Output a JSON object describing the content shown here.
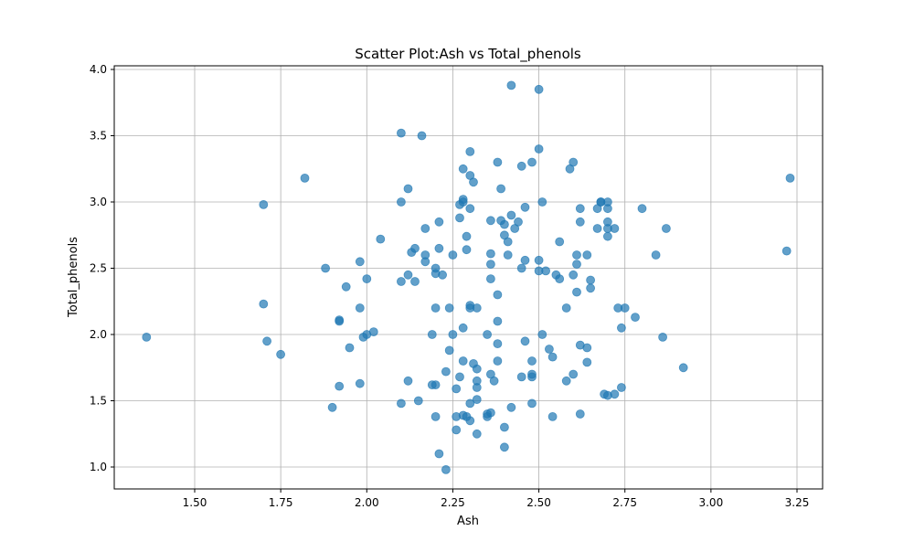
{
  "chart_data": {
    "type": "scatter",
    "title": "Scatter Plot:Ash vs Total_phenols",
    "xlabel": "Ash",
    "ylabel": "Total_phenols",
    "xlim": [
      1.36,
      3.23
    ],
    "ylim": [
      0.98,
      3.88
    ],
    "grid": true,
    "marker_color": "#1f77b4",
    "marker_alpha": 0.7,
    "x_ticks": [
      1.5,
      1.75,
      2.0,
      2.25,
      2.5,
      2.75,
      3.0,
      3.25
    ],
    "x_tick_labels": [
      "1.50",
      "1.75",
      "2.00",
      "2.25",
      "2.50",
      "2.75",
      "3.00",
      "3.25"
    ],
    "y_ticks": [
      1.0,
      1.5,
      2.0,
      2.5,
      3.0,
      3.5,
      4.0
    ],
    "y_tick_labels": [
      "1.0",
      "1.5",
      "2.0",
      "2.5",
      "3.0",
      "3.5",
      "4.0"
    ],
    "points": [
      [
        1.36,
        1.98
      ],
      [
        1.7,
        2.98
      ],
      [
        1.7,
        2.23
      ],
      [
        1.71,
        1.95
      ],
      [
        1.75,
        1.85
      ],
      [
        1.82,
        3.18
      ],
      [
        1.88,
        2.5
      ],
      [
        1.9,
        1.45
      ],
      [
        1.92,
        2.11
      ],
      [
        1.92,
        2.1
      ],
      [
        1.92,
        1.61
      ],
      [
        1.94,
        2.36
      ],
      [
        1.95,
        1.9
      ],
      [
        1.98,
        2.55
      ],
      [
        1.98,
        2.2
      ],
      [
        1.98,
        1.63
      ],
      [
        1.99,
        1.98
      ],
      [
        2.0,
        2.42
      ],
      [
        2.0,
        2.0
      ],
      [
        2.02,
        2.02
      ],
      [
        2.04,
        2.72
      ],
      [
        2.1,
        3.52
      ],
      [
        2.1,
        3.0
      ],
      [
        2.1,
        2.4
      ],
      [
        2.1,
        1.48
      ],
      [
        2.12,
        3.1
      ],
      [
        2.12,
        2.45
      ],
      [
        2.12,
        1.65
      ],
      [
        2.13,
        2.62
      ],
      [
        2.14,
        2.65
      ],
      [
        2.14,
        2.4
      ],
      [
        2.15,
        1.5
      ],
      [
        2.16,
        3.5
      ],
      [
        2.17,
        2.8
      ],
      [
        2.17,
        2.6
      ],
      [
        2.17,
        2.55
      ],
      [
        2.19,
        2.0
      ],
      [
        2.19,
        1.62
      ],
      [
        2.2,
        2.5
      ],
      [
        2.2,
        2.46
      ],
      [
        2.2,
        2.2
      ],
      [
        2.2,
        1.62
      ],
      [
        2.2,
        1.38
      ],
      [
        2.21,
        2.85
      ],
      [
        2.21,
        2.65
      ],
      [
        2.21,
        1.1
      ],
      [
        2.22,
        2.45
      ],
      [
        2.23,
        1.72
      ],
      [
        2.23,
        0.98
      ],
      [
        2.24,
        2.2
      ],
      [
        2.24,
        1.88
      ],
      [
        2.25,
        2.6
      ],
      [
        2.25,
        2.0
      ],
      [
        2.26,
        1.59
      ],
      [
        2.26,
        1.38
      ],
      [
        2.26,
        1.28
      ],
      [
        2.27,
        2.98
      ],
      [
        2.27,
        2.88
      ],
      [
        2.27,
        1.68
      ],
      [
        2.28,
        3.25
      ],
      [
        2.28,
        3.0
      ],
      [
        2.28,
        3.02
      ],
      [
        2.28,
        2.05
      ],
      [
        2.28,
        1.8
      ],
      [
        2.28,
        1.39
      ],
      [
        2.29,
        2.74
      ],
      [
        2.29,
        2.64
      ],
      [
        2.29,
        1.38
      ],
      [
        2.3,
        3.38
      ],
      [
        2.3,
        3.2
      ],
      [
        2.3,
        2.95
      ],
      [
        2.3,
        2.22
      ],
      [
        2.3,
        2.2
      ],
      [
        2.3,
        1.48
      ],
      [
        2.3,
        1.35
      ],
      [
        2.31,
        3.15
      ],
      [
        2.31,
        1.78
      ],
      [
        2.32,
        2.2
      ],
      [
        2.32,
        1.74
      ],
      [
        2.32,
        1.65
      ],
      [
        2.32,
        1.6
      ],
      [
        2.32,
        1.51
      ],
      [
        2.32,
        1.25
      ],
      [
        2.35,
        2.0
      ],
      [
        2.35,
        1.4
      ],
      [
        2.35,
        1.38
      ],
      [
        2.36,
        2.86
      ],
      [
        2.36,
        2.61
      ],
      [
        2.36,
        2.53
      ],
      [
        2.36,
        2.42
      ],
      [
        2.36,
        1.7
      ],
      [
        2.36,
        1.41
      ],
      [
        2.37,
        1.65
      ],
      [
        2.38,
        3.3
      ],
      [
        2.38,
        2.3
      ],
      [
        2.38,
        2.1
      ],
      [
        2.38,
        1.93
      ],
      [
        2.38,
        1.8
      ],
      [
        2.39,
        3.1
      ],
      [
        2.39,
        2.86
      ],
      [
        2.4,
        2.83
      ],
      [
        2.4,
        2.75
      ],
      [
        2.4,
        1.3
      ],
      [
        2.4,
        1.15
      ],
      [
        2.41,
        2.7
      ],
      [
        2.41,
        2.6
      ],
      [
        2.42,
        3.88
      ],
      [
        2.42,
        2.9
      ],
      [
        2.42,
        1.45
      ],
      [
        2.43,
        2.8
      ],
      [
        2.44,
        2.85
      ],
      [
        2.45,
        3.27
      ],
      [
        2.45,
        2.5
      ],
      [
        2.45,
        1.68
      ],
      [
        2.46,
        2.96
      ],
      [
        2.46,
        2.56
      ],
      [
        2.46,
        1.95
      ],
      [
        2.48,
        3.3
      ],
      [
        2.48,
        1.8
      ],
      [
        2.48,
        1.7
      ],
      [
        2.48,
        1.68
      ],
      [
        2.48,
        1.48
      ],
      [
        2.5,
        3.85
      ],
      [
        2.5,
        3.4
      ],
      [
        2.5,
        2.56
      ],
      [
        2.5,
        2.48
      ],
      [
        2.51,
        3.0
      ],
      [
        2.51,
        2.0
      ],
      [
        2.52,
        2.48
      ],
      [
        2.53,
        1.89
      ],
      [
        2.54,
        1.83
      ],
      [
        2.54,
        1.38
      ],
      [
        2.55,
        2.45
      ],
      [
        2.56,
        2.7
      ],
      [
        2.56,
        2.42
      ],
      [
        2.58,
        2.2
      ],
      [
        2.58,
        1.65
      ],
      [
        2.59,
        3.25
      ],
      [
        2.6,
        3.3
      ],
      [
        2.6,
        2.45
      ],
      [
        2.6,
        1.7
      ],
      [
        2.61,
        2.6
      ],
      [
        2.61,
        2.53
      ],
      [
        2.61,
        2.32
      ],
      [
        2.62,
        2.95
      ],
      [
        2.62,
        2.85
      ],
      [
        2.62,
        1.92
      ],
      [
        2.62,
        1.4
      ],
      [
        2.64,
        2.6
      ],
      [
        2.64,
        1.9
      ],
      [
        2.64,
        1.79
      ],
      [
        2.65,
        2.41
      ],
      [
        2.65,
        2.35
      ],
      [
        2.67,
        2.95
      ],
      [
        2.67,
        2.8
      ],
      [
        2.68,
        3.0
      ],
      [
        2.68,
        3.0
      ],
      [
        2.69,
        1.55
      ],
      [
        2.7,
        3.0
      ],
      [
        2.7,
        2.95
      ],
      [
        2.7,
        2.85
      ],
      [
        2.7,
        2.8
      ],
      [
        2.7,
        2.74
      ],
      [
        2.7,
        1.54
      ],
      [
        2.72,
        2.8
      ],
      [
        2.72,
        1.55
      ],
      [
        2.73,
        2.2
      ],
      [
        2.74,
        2.05
      ],
      [
        2.74,
        1.6
      ],
      [
        2.75,
        2.2
      ],
      [
        2.78,
        2.13
      ],
      [
        2.8,
        2.95
      ],
      [
        2.84,
        2.6
      ],
      [
        2.86,
        1.98
      ],
      [
        2.87,
        2.8
      ],
      [
        2.92,
        1.75
      ],
      [
        3.22,
        2.63
      ],
      [
        3.23,
        3.18
      ]
    ]
  }
}
